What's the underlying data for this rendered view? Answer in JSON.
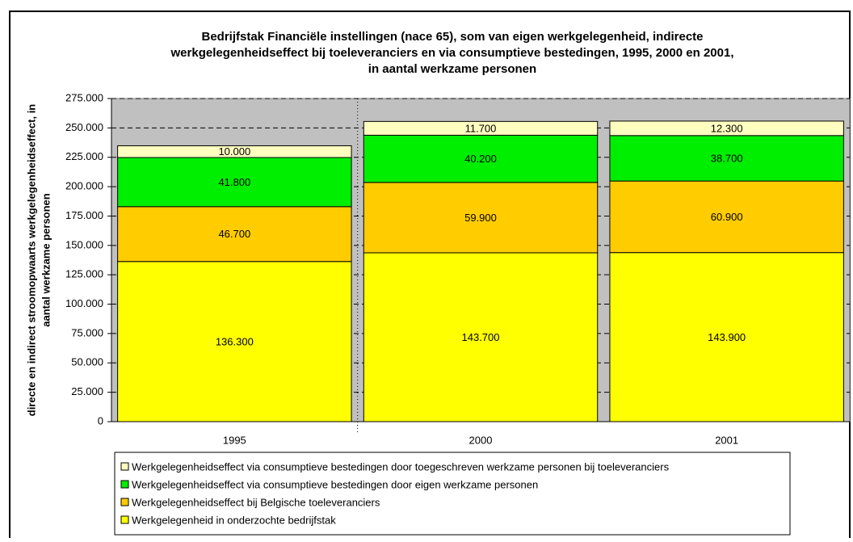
{
  "chart_data": {
    "type": "stacked_bar",
    "title": [
      "Bedrijfstak Financiële instellingen (nace 65), som van eigen werkgelegenheid, indirecte",
      "werkgelegenheidseffect bij toeleveranciers en via consumptieve bestedingen, 1995, 2000 en 2001,",
      "in aantal werkzame personen"
    ],
    "ylabel": [
      "directe en indirect stroomopwaarts werkgelegenheidseffect,  in",
      "aantal werkzame personen"
    ],
    "categories": [
      "1995",
      "2000",
      "2001"
    ],
    "series": [
      {
        "name": "Werkgelegenheid in onderzochte bedrijfstak",
        "color": "#ffff00",
        "values": [
          136300,
          143700,
          143900
        ],
        "value_labels": [
          "136.300",
          "143.700",
          "143.900"
        ]
      },
      {
        "name": "Werkgelegenheidseffect bij Belgische toeleveranciers",
        "color": "#ffcc00",
        "values": [
          46700,
          59900,
          60900
        ],
        "value_labels": [
          "46.700",
          "59.900",
          "60.900"
        ]
      },
      {
        "name": "Werkgelegenheidseffect via consumptieve bestedingen door eigen werkzame personen",
        "color": "#00ee00",
        "values": [
          41800,
          40200,
          38700
        ],
        "value_labels": [
          "41.800",
          "40.200",
          "38.700"
        ]
      },
      {
        "name": "Werkgelegenheidseffect via consumptieve bestedingen door toegeschreven werkzame personen bij toeleveranciers",
        "color": "#ffffc0",
        "values": [
          10000,
          11700,
          12300
        ],
        "value_labels": [
          "10.000",
          "11.700",
          "12.300"
        ]
      }
    ],
    "ylim": [
      0,
      275000
    ],
    "yticks": [
      0,
      {
        "value": 25000,
        "label": "25.000"
      },
      {
        "value": 50000,
        "label": "50.000"
      },
      {
        "value": 75000,
        "label": "75.000"
      },
      {
        "value": 100000,
        "label": "100.000"
      },
      {
        "value": 125000,
        "label": "125.000"
      },
      {
        "value": 150000,
        "label": "150.000"
      },
      {
        "value": 175000,
        "label": "175.000"
      },
      {
        "value": 200000,
        "label": "200.000"
      },
      {
        "value": 225000,
        "label": "225.000"
      },
      {
        "value": 250000,
        "label": "250.000"
      },
      {
        "value": 275000,
        "label": "275.000"
      }
    ],
    "grid": true,
    "plot_background": "#c0c0c0"
  }
}
